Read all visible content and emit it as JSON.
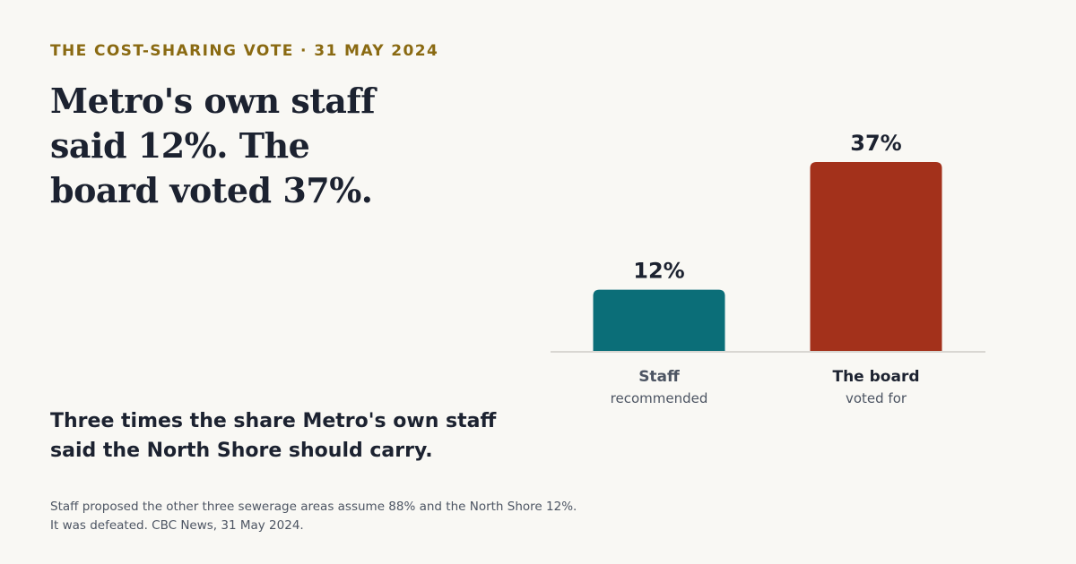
{
  "kicker": "THE COST-SHARING VOTE · 31 MAY 2024",
  "headline": "Metro's own staff said 12%. The board voted 37%.",
  "subhead": "Three times the share Metro's own staff said the North Shore should carry.",
  "note": "Staff proposed the other three sewerage areas assume 88% and the North Shore 12%. It was defeated. CBC News, 31 May 2024.",
  "colors": {
    "background": "#f9f8f4",
    "kicker": "#8a6a12",
    "staff_bar": "#0b6e78",
    "board_bar": "#a3311b",
    "baseline": "#d9d7d2"
  },
  "chart_data": {
    "type": "bar",
    "categories": [
      "Staff",
      "The board"
    ],
    "category_subtitles": [
      "recommended",
      "voted for"
    ],
    "values": [
      12,
      37
    ],
    "value_labels": [
      "12%",
      "37%"
    ],
    "bar_colors": [
      "#0b6e78",
      "#a3311b"
    ],
    "ylim": [
      0,
      37
    ],
    "grid": false,
    "legend": "none",
    "title": "",
    "xlabel": "",
    "ylabel": ""
  }
}
